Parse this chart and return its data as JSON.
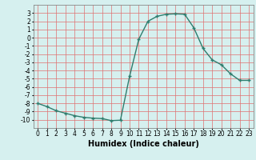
{
  "x": [
    0,
    1,
    2,
    3,
    4,
    5,
    6,
    7,
    8,
    9,
    10,
    11,
    12,
    13,
    14,
    15,
    16,
    17,
    18,
    19,
    20,
    21,
    22,
    23
  ],
  "y": [
    -8.0,
    -8.4,
    -8.9,
    -9.2,
    -9.5,
    -9.7,
    -9.8,
    -9.85,
    -10.1,
    -10.05,
    -4.7,
    -0.2,
    2.0,
    2.6,
    2.85,
    2.9,
    2.85,
    1.2,
    -1.3,
    -2.7,
    -3.3,
    -4.4,
    -5.2,
    -5.2
  ],
  "line_color": "#2e7d6e",
  "marker": "+",
  "marker_size": 3,
  "bg_color": "#d6f0ef",
  "grid_color": "#e07070",
  "xlabel": "Humidex (Indice chaleur)",
  "xlim": [
    -0.5,
    23.5
  ],
  "ylim": [
    -11,
    4
  ],
  "xticks": [
    0,
    1,
    2,
    3,
    4,
    5,
    6,
    7,
    8,
    9,
    10,
    11,
    12,
    13,
    14,
    15,
    16,
    17,
    18,
    19,
    20,
    21,
    22,
    23
  ],
  "yticks": [
    3,
    2,
    1,
    0,
    -1,
    -2,
    -3,
    -4,
    -5,
    -6,
    -7,
    -8,
    -9,
    -10
  ],
  "xlabel_fontsize": 7,
  "tick_fontsize": 5.5,
  "line_width": 1.0
}
